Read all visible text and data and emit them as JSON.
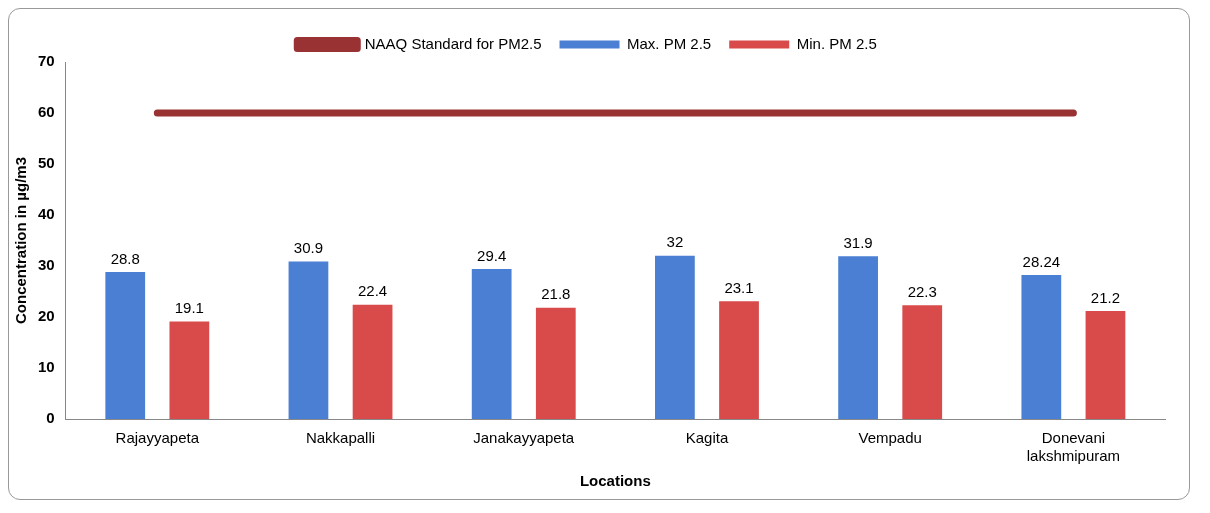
{
  "chart_data": {
    "type": "bar",
    "xlabel": "Locations",
    "ylabel": "Concentration in µg/m3",
    "categories": [
      "Rajayyapeta",
      "Nakkapalli",
      "Janakayyapeta",
      "Kagita",
      "Vempadu",
      "Donevani lakshmipuram"
    ],
    "series": [
      {
        "name": "Max. PM 2.5",
        "color": "#4a7fd4",
        "values": [
          28.8,
          30.9,
          29.4,
          32,
          31.9,
          28.24
        ],
        "value_labels": [
          "28.8",
          "30.9",
          "29.4",
          "32",
          "31.9",
          "28.24"
        ]
      },
      {
        "name": "Min. PM 2.5",
        "color": "#d94a4a",
        "values": [
          19.1,
          22.4,
          21.8,
          23.1,
          22.3,
          21.2
        ],
        "value_labels": [
          "19.1",
          "22.4",
          "21.8",
          "23.1",
          "22.3",
          "21.2"
        ]
      },
      {
        "name": "NAAQ Standard for PM2.5",
        "type": "line",
        "color": "#993333",
        "values": [
          60,
          60,
          60,
          60,
          60,
          60
        ]
      }
    ],
    "ylim": [
      0,
      70
    ],
    "yticks": [
      0,
      10,
      20,
      30,
      40,
      50,
      60,
      70
    ],
    "grid": false,
    "legend": "top",
    "marker": "none"
  }
}
